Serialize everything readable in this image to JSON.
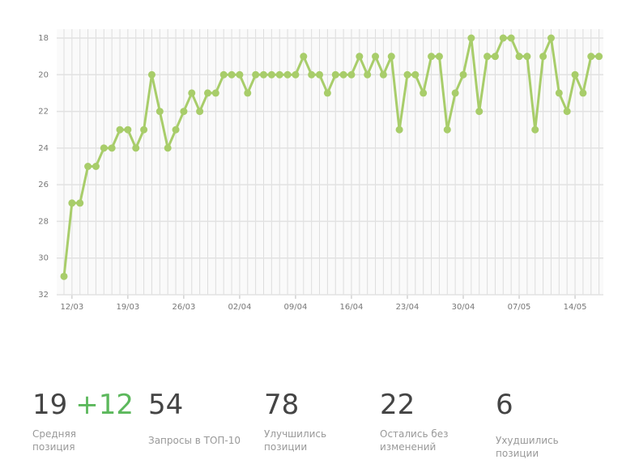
{
  "chart_data": {
    "type": "line",
    "categories": [
      null,
      "12/03",
      null,
      null,
      null,
      null,
      null,
      null,
      "19/03",
      null,
      null,
      null,
      null,
      null,
      null,
      "26/03",
      null,
      null,
      null,
      null,
      null,
      null,
      "02/04",
      null,
      null,
      null,
      null,
      null,
      null,
      "09/04",
      null,
      null,
      null,
      null,
      null,
      null,
      "16/04",
      null,
      null,
      null,
      null,
      null,
      null,
      "23/04",
      null,
      null,
      null,
      null,
      null,
      null,
      "30/04",
      null,
      null,
      null,
      null,
      null,
      null,
      "07/05",
      null,
      null,
      null,
      null,
      null,
      null,
      "14/05",
      null,
      null,
      null
    ],
    "values": [
      31,
      27,
      27,
      25,
      25,
      24,
      24,
      23,
      23,
      24,
      23,
      20,
      22,
      24,
      23,
      22,
      21,
      22,
      21,
      21,
      20,
      20,
      20,
      21,
      20,
      20,
      20,
      20,
      20,
      20,
      19,
      20,
      20,
      21,
      20,
      20,
      20,
      19,
      20,
      19,
      20,
      19,
      23,
      20,
      20,
      21,
      19,
      19,
      23,
      21,
      20,
      18,
      22,
      19,
      19,
      18,
      18,
      19,
      19,
      23,
      19,
      18,
      21,
      22,
      20,
      21,
      19,
      19
    ],
    "color": "#a8cd6a",
    "ylim": [
      32,
      18
    ],
    "yticks": [
      18,
      20,
      22,
      24,
      26,
      28,
      30,
      32
    ],
    "grid": true
  },
  "stats": [
    {
      "value": 19,
      "delta": "+12",
      "label": "Средняя позиция"
    },
    {
      "value": 54,
      "label": "Запросы в ТОП-10"
    },
    {
      "value": 78,
      "label": "Улучшились позиции"
    },
    {
      "value": 22,
      "label": "Остались без изменений"
    },
    {
      "value": 6,
      "label": "Ухудшились позиции"
    }
  ]
}
